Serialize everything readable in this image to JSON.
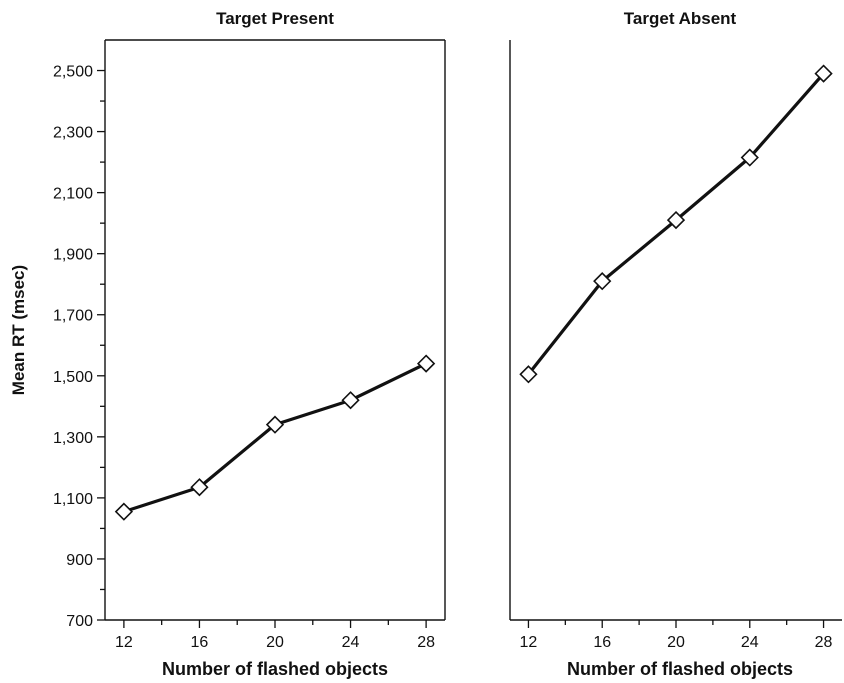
{
  "chart_data": [
    {
      "type": "line",
      "title": "Target Present",
      "xlabel": "Number of flashed objects",
      "ylabel": "Mean RT (msec)",
      "x": [
        12,
        16,
        20,
        24,
        28
      ],
      "y": [
        1055,
        1135,
        1340,
        1420,
        1540
      ],
      "xlim": [
        11,
        29
      ],
      "ylim": [
        700,
        2600
      ],
      "xticks": [
        12,
        16,
        20,
        24,
        28
      ],
      "yticks": [
        700,
        900,
        1100,
        1300,
        1500,
        1700,
        1900,
        2100,
        2300,
        2500
      ],
      "ytick_labels": [
        "700",
        "900",
        "1,100",
        "1,300",
        "1,500",
        "1,700",
        "1,900",
        "2,100",
        "2,300",
        "2,500"
      ],
      "marker": "diamond",
      "grid": false
    },
    {
      "type": "line",
      "title": "Target Absent",
      "xlabel": "Number of flashed objects",
      "ylabel": "",
      "x": [
        12,
        16,
        20,
        24,
        28
      ],
      "y": [
        1505,
        1810,
        2010,
        2215,
        2490
      ],
      "xlim": [
        11,
        29
      ],
      "ylim": [
        700,
        2600
      ],
      "xticks": [
        12,
        16,
        20,
        24,
        28
      ],
      "yticks": [],
      "ytick_labels": [],
      "marker": "diamond",
      "grid": false
    }
  ]
}
